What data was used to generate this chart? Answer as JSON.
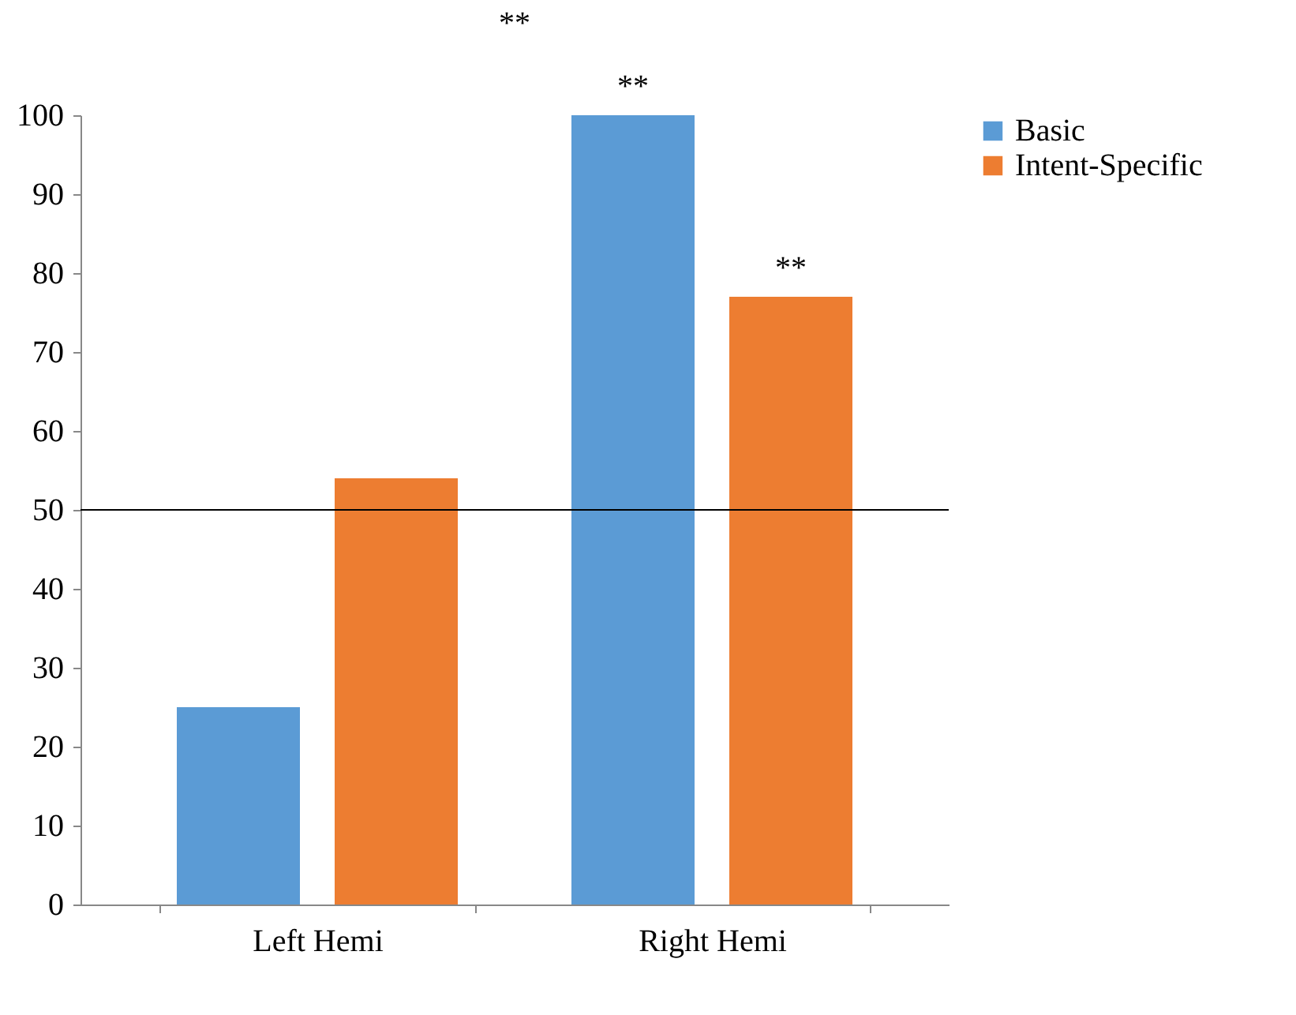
{
  "chart_data": {
    "type": "bar",
    "categories": [
      "Left Hemi",
      "Right Hemi"
    ],
    "series": [
      {
        "name": "Basic",
        "color": "#5b9bd5",
        "values": [
          25,
          100
        ]
      },
      {
        "name": "Intent-Specific",
        "color": "#ed7d31",
        "values": [
          54,
          77
        ]
      }
    ],
    "ylim": [
      0,
      100
    ],
    "yticks": [
      0,
      10,
      20,
      30,
      40,
      50,
      60,
      70,
      80,
      90,
      100
    ],
    "grid": false,
    "legend": "right",
    "ref_lines": [
      {
        "axis": "y",
        "value": 50,
        "label": null,
        "color": "#000000"
      }
    ],
    "annotations": [
      "**",
      "**",
      "**"
    ]
  }
}
